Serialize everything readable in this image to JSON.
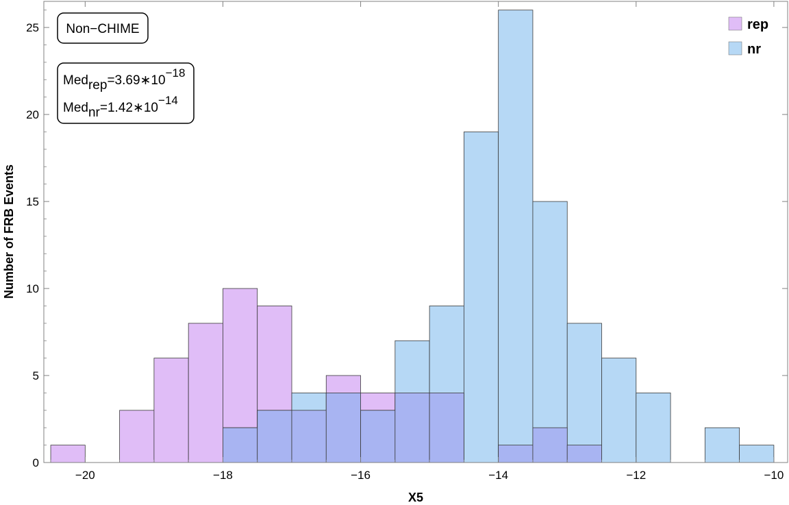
{
  "chart_data": {
    "type": "bar",
    "xlabel": "X5",
    "ylabel": "Number of FRB Events",
    "xlim": [
      -20.6,
      -9.8
    ],
    "ylim": [
      0,
      26.5
    ],
    "x_ticks": [
      -20,
      -18,
      -16,
      -14,
      -12,
      -10
    ],
    "x_tick_labels": [
      "−20",
      "−18",
      "−16",
      "−14",
      "−12",
      "−10"
    ],
    "y_ticks": [
      0,
      5,
      10,
      15,
      20,
      25
    ],
    "y_tick_labels": [
      "0",
      "5",
      "10",
      "15",
      "20",
      "25"
    ],
    "bin_width": 0.5,
    "grid": false,
    "legend_position": "top-right",
    "series": [
      {
        "name": "rep",
        "color": "#e0bdf7",
        "bins": [
          {
            "x0": -20.5,
            "count": 1
          },
          {
            "x0": -19.5,
            "count": 3
          },
          {
            "x0": -19.0,
            "count": 6
          },
          {
            "x0": -18.5,
            "count": 8
          },
          {
            "x0": -18.0,
            "count": 10
          },
          {
            "x0": -17.5,
            "count": 9
          },
          {
            "x0": -17.0,
            "count": 3
          },
          {
            "x0": -16.5,
            "count": 5
          },
          {
            "x0": -16.0,
            "count": 4
          },
          {
            "x0": -15.5,
            "count": 4
          },
          {
            "x0": -15.0,
            "count": 4
          },
          {
            "x0": -14.0,
            "count": 1
          },
          {
            "x0": -13.5,
            "count": 2
          },
          {
            "x0": -13.0,
            "count": 1
          }
        ]
      },
      {
        "name": "nr",
        "color": "#b6d8f5",
        "bins": [
          {
            "x0": -18.0,
            "count": 2
          },
          {
            "x0": -17.5,
            "count": 3
          },
          {
            "x0": -17.0,
            "count": 4
          },
          {
            "x0": -16.5,
            "count": 4
          },
          {
            "x0": -16.0,
            "count": 3
          },
          {
            "x0": -15.5,
            "count": 7
          },
          {
            "x0": -15.0,
            "count": 9
          },
          {
            "x0": -14.5,
            "count": 19
          },
          {
            "x0": -14.0,
            "count": 26
          },
          {
            "x0": -13.5,
            "count": 15
          },
          {
            "x0": -13.0,
            "count": 8
          },
          {
            "x0": -12.5,
            "count": 6
          },
          {
            "x0": -12.0,
            "count": 4
          },
          {
            "x0": -11.0,
            "count": 2
          },
          {
            "x0": -10.5,
            "count": 1
          }
        ]
      }
    ],
    "overlap_color": "#a8b4f2",
    "annotations": {
      "sample_label": "Non−CHIME",
      "median_rep": {
        "prefix": "Med",
        "sub": "rep",
        "value": "=3.69∗10",
        "exp": "−18"
      },
      "median_nr": {
        "prefix": "Med",
        "sub": "nr",
        "value": "=1.42∗10",
        "exp": "−14"
      }
    }
  }
}
